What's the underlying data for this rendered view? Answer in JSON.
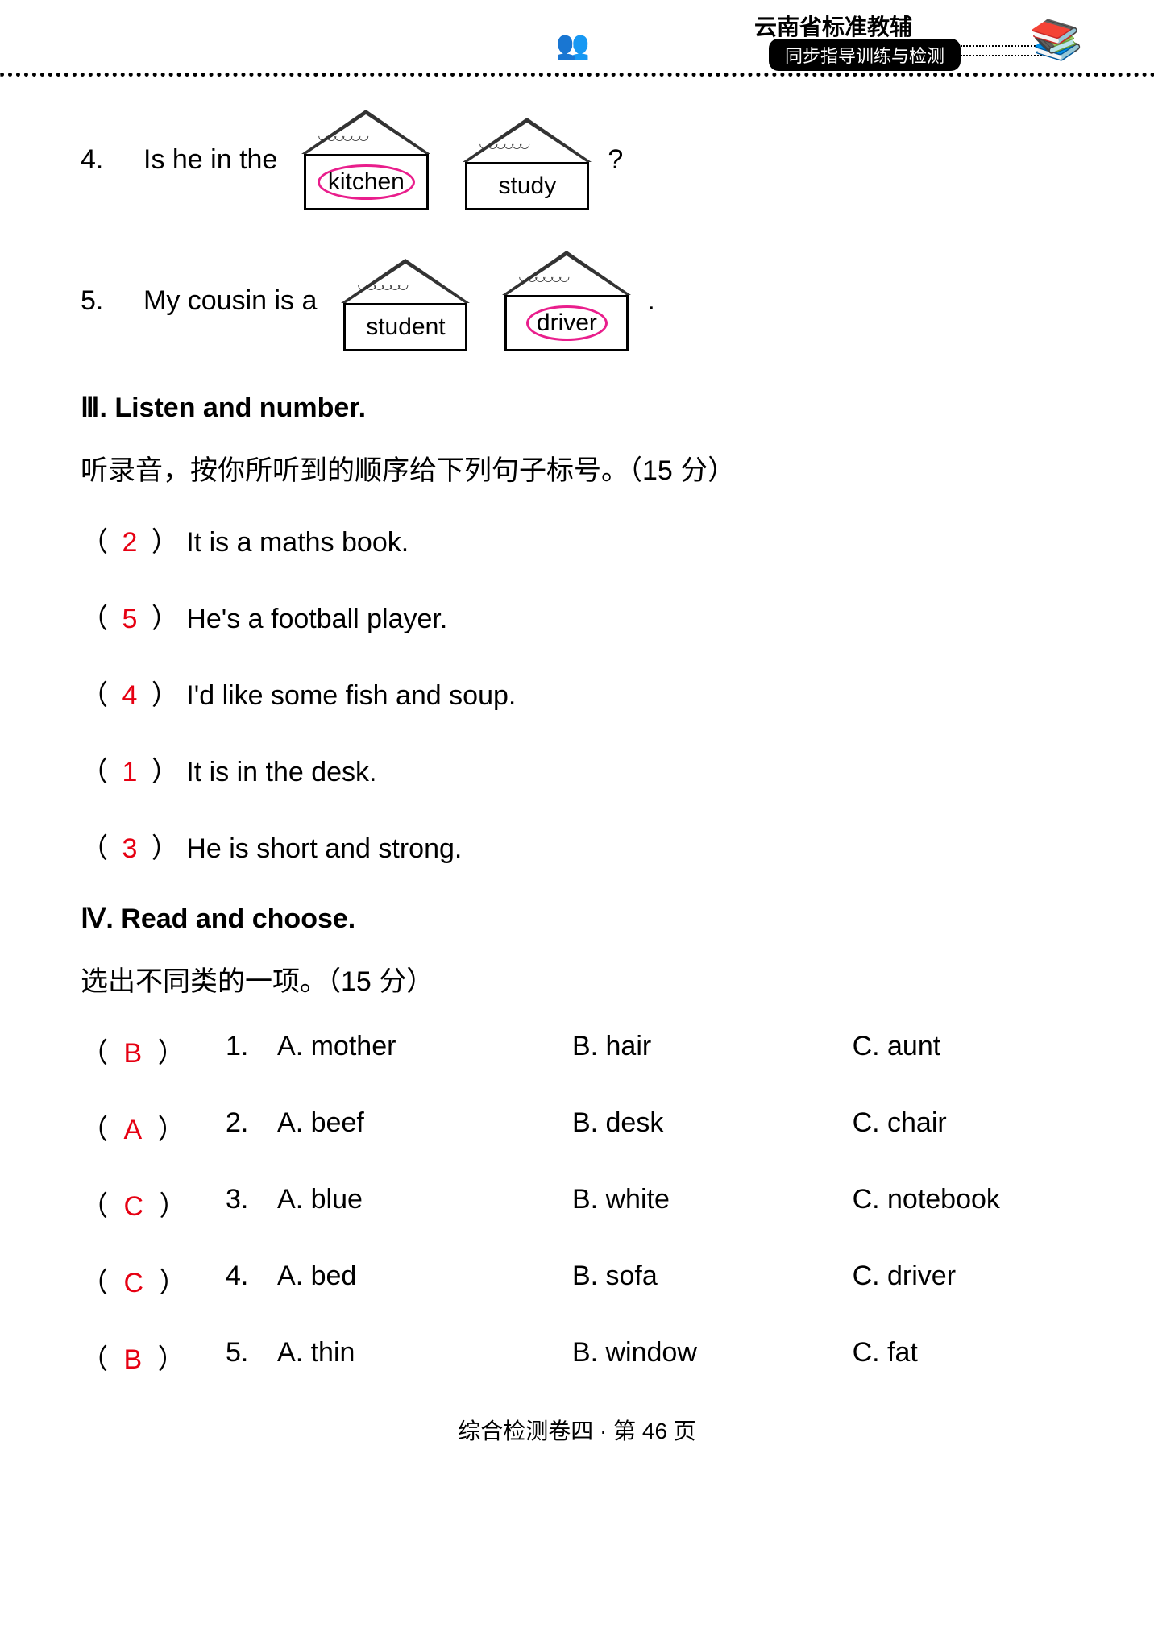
{
  "header": {
    "title": "云南省标准教辅",
    "banner": "同步指导训练与检测",
    "books_icon": "📚",
    "faces_icon": "👥"
  },
  "colors": {
    "answer_red": "#e60012",
    "circle_pink": "#e91e8c",
    "text_black": "#000000",
    "background": "#ffffff"
  },
  "fonts": {
    "body_size_pt": 26,
    "header_title_pt": 21,
    "footer_pt": 21
  },
  "q4": {
    "number": "4.",
    "text": "Is he in the",
    "house1": "kitchen",
    "house2": "study",
    "house1_circled": true,
    "house2_circled": false,
    "tail": "?"
  },
  "q5": {
    "number": "5.",
    "text": "My cousin is a",
    "house1": "student",
    "house2": "driver",
    "house1_circled": false,
    "house2_circled": true,
    "tail": "."
  },
  "section3": {
    "head": "Ⅲ.  Listen and number.",
    "instruction": "听录音，按你所听到的顺序给下列句子标号。（15 分）",
    "items": [
      {
        "answer": "2",
        "text": "It is a maths book."
      },
      {
        "answer": "5",
        "text": "He's a football player."
      },
      {
        "answer": "4",
        "text": "I'd like some fish and soup."
      },
      {
        "answer": "1",
        "text": "It is in the desk."
      },
      {
        "answer": "3",
        "text": "He is short and strong."
      }
    ]
  },
  "section4": {
    "head": "Ⅳ.  Read and choose.",
    "instruction": "选出不同类的一项。（15 分）",
    "items": [
      {
        "answer": "B",
        "num": "1.",
        "a": "A.  mother",
        "b": "B.  hair",
        "c": "C.  aunt"
      },
      {
        "answer": "A",
        "num": "2.",
        "a": "A.  beef",
        "b": "B.  desk",
        "c": "C.  chair"
      },
      {
        "answer": "C",
        "num": "3.",
        "a": "A.  blue",
        "b": "B.  white",
        "c": "C.  notebook"
      },
      {
        "answer": "C",
        "num": "4.",
        "a": "A.  bed",
        "b": "B.  sofa",
        "c": "C.  driver"
      },
      {
        "answer": "B",
        "num": "5.",
        "a": "A.  thin",
        "b": "B.  window",
        "c": "C.  fat"
      }
    ]
  },
  "footer": "综合检测卷四 · 第 46 页"
}
